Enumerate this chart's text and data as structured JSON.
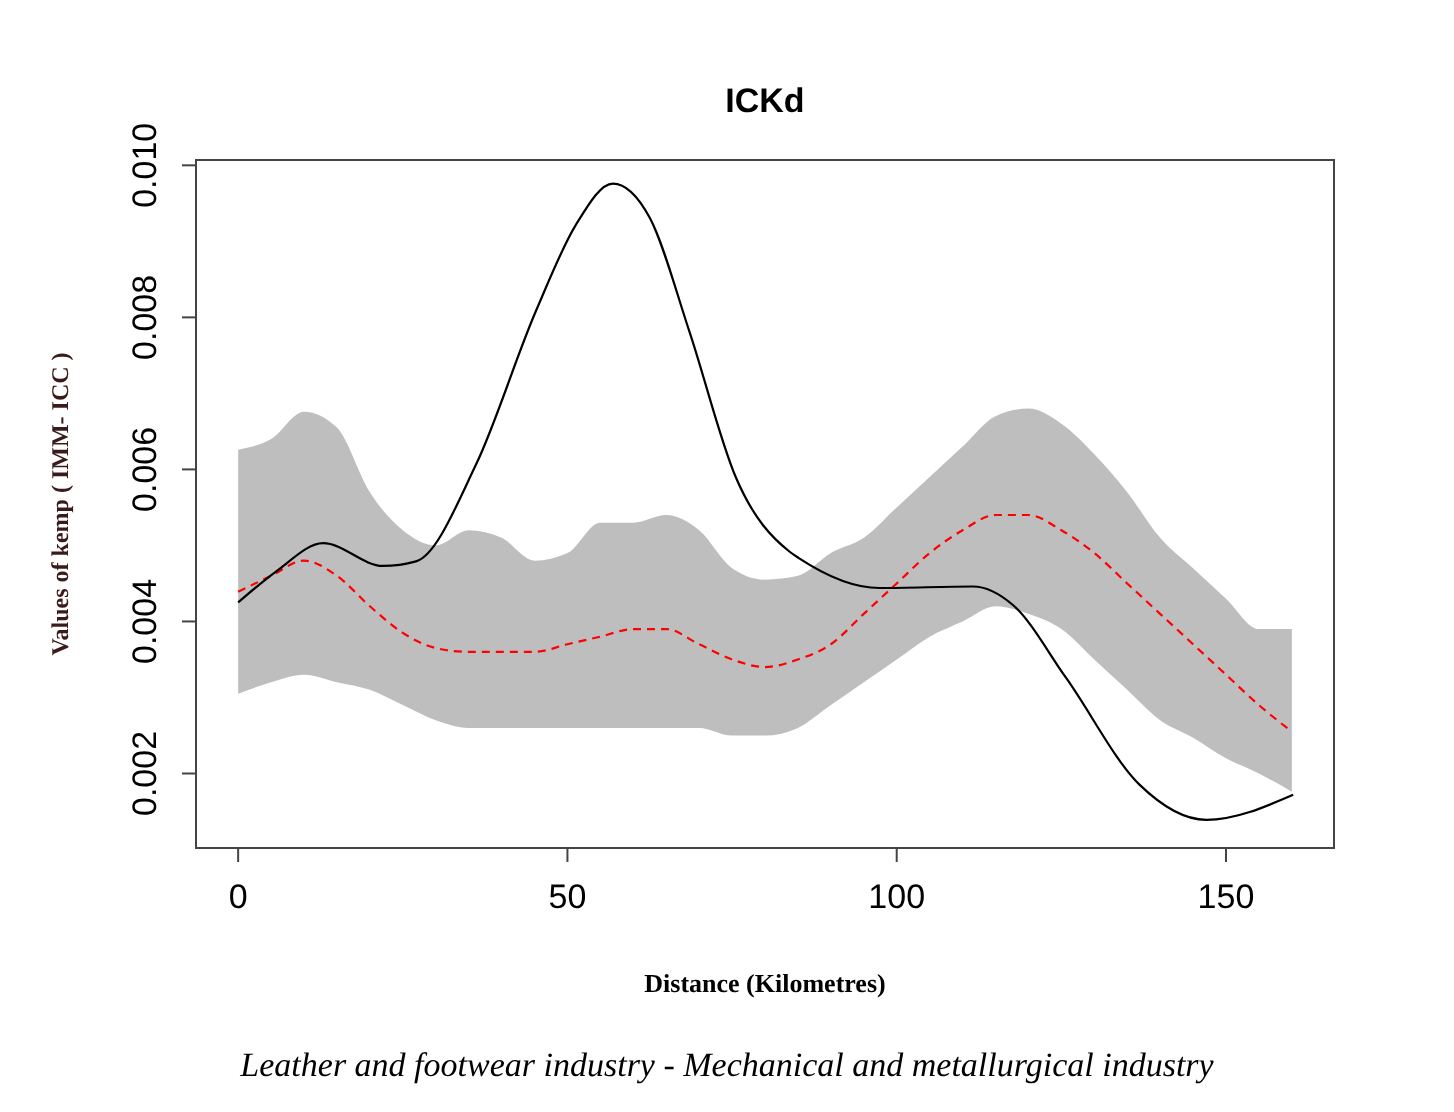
{
  "chart_data": {
    "type": "line",
    "title": "ICKd",
    "xlabel": "Distance (Kilometres)",
    "ylabel": "Values of kemp ( IMM- ICC )",
    "annotations": [
      "Leather and footwear industry - Mechanical and metallurgical industry"
    ],
    "xlim": [
      -6.4,
      166.4
    ],
    "xticks": [
      0,
      50,
      100,
      150
    ],
    "ylim": [
      0.00102,
      0.01007
    ],
    "yticks": [
      0.002,
      0.004,
      0.006,
      0.008,
      {
        "value": 0.01,
        "label": "0.010"
      }
    ],
    "grid": false,
    "series": [
      {
        "color": "#ff0000",
        "line_style": "dashed",
        "x": [
          0,
          5,
          10,
          15,
          20,
          25,
          30,
          35,
          40,
          45,
          50,
          55,
          60,
          65,
          70,
          75,
          80,
          85,
          90,
          95,
          100,
          105,
          110,
          115,
          120,
          125,
          130,
          135,
          140,
          145,
          150,
          155,
          160
        ],
        "values": [
          0.00439,
          0.0046,
          0.0048,
          0.0046,
          0.0042,
          0.00385,
          0.00365,
          0.0036,
          0.0036,
          0.0036,
          0.0037,
          0.0038,
          0.0039,
          0.0039,
          0.0037,
          0.0035,
          0.0034,
          0.0035,
          0.0037,
          0.0041,
          0.0045,
          0.0049,
          0.0052,
          0.0054,
          0.0054,
          0.0052,
          0.0049,
          0.0045,
          0.0041,
          0.0037,
          0.0033,
          0.0029,
          0.00255
        ],
        "lower": [
          0.00305,
          0.0032,
          0.0033,
          0.0032,
          0.0031,
          0.0029,
          0.0027,
          0.0026,
          0.0026,
          0.0026,
          0.0026,
          0.0026,
          0.0026,
          0.0026,
          0.0026,
          0.0025,
          0.0025,
          0.0026,
          0.0029,
          0.0032,
          0.0035,
          0.0038,
          0.004,
          0.0042,
          0.0041,
          0.0039,
          0.0035,
          0.0031,
          0.0027,
          0.00247,
          0.0022,
          0.002,
          0.00176
        ],
        "upper": [
          0.00626,
          0.0064,
          0.00676,
          0.00655,
          0.0057,
          0.0052,
          0.005,
          0.0052,
          0.0051,
          0.0048,
          0.0049,
          0.0053,
          0.0053,
          0.0054,
          0.0052,
          0.0047,
          0.00455,
          0.0046,
          0.0049,
          0.0051,
          0.0055,
          0.0059,
          0.0063,
          0.0067,
          0.0068,
          0.0066,
          0.0062,
          0.0057,
          0.0051,
          0.0047,
          0.0043,
          0.0039,
          0.0039
        ]
      },
      {
        "color": "#000000",
        "line_style": "solid",
        "x": [
          0,
          5.8,
          12.9,
          22,
          27,
          36.1,
          45.2,
          51.3,
          56.9,
          62.5,
          68.5,
          75.6,
          83.7,
          85.2,
          97.4,
          111.6,
          117.6,
          125.7,
          136.9,
          147,
          160.2
        ],
        "values": [
          0.00425,
          0.00466,
          0.00503,
          0.00473,
          0.00479,
          0.00606,
          0.00808,
          0.00922,
          0.00976,
          0.00931,
          0.00782,
          0.00589,
          0.00492,
          0.00483,
          0.00444,
          0.00446,
          0.00422,
          0.00326,
          0.00185,
          0.00139,
          0.00172
        ]
      }
    ]
  }
}
